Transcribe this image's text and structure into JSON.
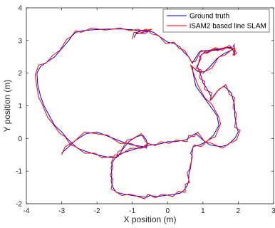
{
  "chart_data": {
    "type": "line",
    "xlabel": "X position (m)",
    "ylabel": "Y position (m)",
    "xlim": [
      -4,
      3
    ],
    "ylim": [
      -2,
      4
    ],
    "xticks": [
      -4,
      -3,
      -2,
      -1,
      0,
      1,
      2,
      3
    ],
    "yticks": [
      -2,
      -1,
      0,
      1,
      2,
      3,
      4
    ],
    "xtick_labels": [
      "-4",
      "-3",
      "-2",
      "-1",
      "0",
      "1",
      "2",
      "3"
    ],
    "ytick_labels": [
      "-2",
      "-1",
      "0",
      "1",
      "2",
      "3",
      "4"
    ],
    "grid": false,
    "legend_position": "top-right",
    "series": [
      {
        "name": "Ground truth",
        "color": "#0000ff",
        "x": [
          -3.0,
          -2.85,
          -2.6,
          -2.3,
          -2.0,
          -1.65,
          -1.3,
          -1.0,
          -0.7,
          -0.6,
          -0.58,
          -0.6,
          -0.7,
          -0.9,
          -1.1,
          -1.25,
          -1.35,
          -1.4,
          -1.55,
          -1.8,
          -2.0,
          -2.3,
          -2.55,
          -2.7,
          -2.85,
          -3.0,
          -3.2,
          -3.35,
          -3.5,
          -3.6,
          -3.68,
          -3.7,
          -3.6,
          -3.4,
          -3.2,
          -3.0,
          -2.8,
          -2.7,
          -2.6,
          -2.4,
          -2.1,
          -1.7,
          -1.3,
          -1.0,
          -0.8,
          -0.65,
          -0.5,
          -0.7,
          -0.9,
          -0.95,
          -0.9,
          -0.8,
          -0.55,
          -0.4,
          -0.2,
          0.0,
          0.2,
          0.35,
          0.45,
          0.6,
          0.7,
          0.75,
          0.9,
          1.1,
          1.3,
          1.5,
          1.7,
          1.85,
          1.8,
          1.6,
          1.4,
          1.2,
          1.0,
          0.8,
          0.7,
          0.72,
          0.8,
          1.0,
          1.2,
          1.4,
          1.45,
          1.3,
          1.1,
          0.9,
          0.72,
          0.7,
          0.68,
          0.65,
          0.6,
          0.6,
          0.55,
          0.45,
          0.35,
          0.1,
          -0.1,
          -0.3,
          -0.5,
          -0.6,
          -1.0,
          -1.25,
          -1.45,
          -1.55,
          -1.6,
          -1.58,
          -1.6,
          -1.55,
          -1.45,
          -1.3,
          -1.0,
          -0.7,
          -0.5,
          -0.3,
          -0.15,
          0.0,
          0.2,
          0.5,
          0.65,
          0.7,
          0.8,
          1.0,
          1.2,
          1.5,
          1.7,
          1.9,
          2.0,
          1.95,
          1.9,
          1.9,
          1.85,
          1.8,
          1.6,
          1.45,
          1.3,
          1.25,
          1.2,
          1.1,
          1.0,
          0.95,
          0.9,
          0.85,
          0.9,
          0.95,
          1.0,
          1.15,
          1.3,
          1.45,
          1.6,
          1.8,
          1.85,
          1.9,
          1.9,
          1.88
        ],
        "y": [
          -0.45,
          -0.3,
          -0.05,
          0.15,
          0.2,
          0.05,
          -0.1,
          -0.2,
          -0.25,
          -0.3,
          -0.2,
          -0.05,
          0.1,
          0.05,
          -0.1,
          -0.3,
          -0.45,
          -0.55,
          -0.6,
          -0.55,
          -0.5,
          -0.4,
          -0.3,
          -0.15,
          0.0,
          0.2,
          0.4,
          0.7,
          1.0,
          1.3,
          1.65,
          2.0,
          2.2,
          2.35,
          2.5,
          2.75,
          3.0,
          3.15,
          3.25,
          3.3,
          3.33,
          3.35,
          3.35,
          3.33,
          3.3,
          3.32,
          3.3,
          3.25,
          3.2,
          3.1,
          3.2,
          3.3,
          3.3,
          3.25,
          3.1,
          2.95,
          2.9,
          2.8,
          2.65,
          2.5,
          2.3,
          2.4,
          2.65,
          2.7,
          2.72,
          2.75,
          2.8,
          2.75,
          2.7,
          2.6,
          2.45,
          2.2,
          2.0,
          2.1,
          2.2,
          2.0,
          1.6,
          1.3,
          1.0,
          0.7,
          0.4,
          0.1,
          -0.1,
          -0.2,
          -0.25,
          -0.4,
          -0.6,
          -0.9,
          -1.1,
          -1.3,
          -1.45,
          -1.6,
          -1.68,
          -1.72,
          -1.75,
          -1.78,
          -1.75,
          -1.8,
          -1.75,
          -1.7,
          -1.65,
          -1.5,
          -1.3,
          -1.1,
          -0.9,
          -0.7,
          -0.55,
          -0.45,
          -0.35,
          -0.25,
          -0.2,
          -0.18,
          -0.15,
          -0.1,
          -0.1,
          -0.05,
          0.05,
          0.1,
          0.15,
          -0.05,
          -0.2,
          -0.25,
          -0.2,
          0.0,
          0.2,
          0.4,
          0.7,
          1.0,
          1.2,
          1.4,
          1.6,
          1.5,
          1.3,
          1.2,
          1.35,
          1.55,
          1.7,
          1.9,
          2.05,
          2.2,
          2.4,
          2.55,
          2.6,
          2.65,
          2.7,
          2.72,
          2.75,
          2.8,
          2.7,
          2.6,
          2.55,
          2.9
        ]
      },
      {
        "name": "iSAM2 based line SLAM",
        "color": "#ff0000",
        "x": [
          -3.0,
          -2.9,
          -2.65,
          -2.35,
          -2.05,
          -1.7,
          -1.35,
          -1.05,
          -0.75,
          -0.62,
          -0.55,
          -0.62,
          -0.75,
          -0.95,
          -1.15,
          -1.3,
          -1.4,
          -1.45,
          -1.6,
          -1.85,
          -2.05,
          -2.35,
          -2.6,
          -2.75,
          -2.9,
          -3.05,
          -3.25,
          -3.4,
          -3.55,
          -3.65,
          -3.72,
          -3.75,
          -3.65,
          -3.45,
          -3.25,
          -3.05,
          -2.85,
          -2.75,
          -2.6,
          -2.45,
          -2.15,
          -1.75,
          -1.35,
          -1.05,
          -0.85,
          -0.7,
          -0.45,
          -0.65,
          -0.95,
          -1.0,
          -0.95,
          -0.85,
          -0.6,
          -0.45,
          -0.25,
          -0.05,
          0.18,
          0.33,
          0.48,
          0.62,
          0.68,
          0.78,
          0.95,
          1.12,
          1.35,
          1.55,
          1.75,
          1.9,
          1.85,
          1.62,
          1.45,
          1.25,
          1.05,
          0.85,
          0.65,
          0.75,
          0.85,
          1.05,
          1.25,
          1.45,
          1.5,
          1.35,
          1.15,
          0.95,
          0.75,
          0.65,
          0.7,
          0.62,
          0.55,
          0.62,
          0.5,
          0.5,
          0.3,
          0.15,
          -0.15,
          -0.35,
          -0.55,
          -0.65,
          -1.05,
          -1.3,
          -1.5,
          -1.6,
          -1.55,
          -1.62,
          -1.55,
          -1.6,
          -1.5,
          -1.35,
          -1.05,
          -0.75,
          -0.55,
          -0.35,
          -0.2,
          0.05,
          0.25,
          0.55,
          0.6,
          0.75,
          0.85,
          1.05,
          1.25,
          1.55,
          1.75,
          1.95,
          2.05,
          1.9,
          1.95,
          1.85,
          1.9,
          1.75,
          1.65,
          1.4,
          1.35,
          1.2,
          1.25,
          1.05,
          1.05,
          0.9,
          0.95,
          0.8,
          0.95,
          0.9,
          1.05,
          1.1,
          1.35,
          1.4,
          1.65,
          1.75,
          1.9,
          1.85,
          1.95,
          1.85
        ],
        "y": [
          -0.5,
          -0.25,
          -0.1,
          0.2,
          0.15,
          0.1,
          -0.15,
          -0.15,
          -0.3,
          -0.25,
          -0.15,
          -0.1,
          0.15,
          0.0,
          -0.05,
          -0.35,
          -0.4,
          -0.6,
          -0.55,
          -0.6,
          -0.45,
          -0.45,
          -0.25,
          -0.2,
          0.05,
          0.15,
          0.45,
          0.65,
          1.05,
          1.25,
          1.7,
          1.95,
          2.25,
          2.3,
          2.55,
          2.7,
          3.05,
          3.1,
          3.3,
          3.25,
          3.38,
          3.32,
          3.38,
          3.3,
          3.35,
          3.28,
          3.35,
          3.2,
          3.25,
          3.05,
          3.25,
          3.25,
          3.35,
          3.2,
          3.15,
          2.9,
          2.95,
          2.75,
          2.7,
          2.45,
          2.35,
          2.35,
          2.7,
          2.65,
          2.78,
          2.7,
          2.85,
          2.7,
          2.75,
          2.55,
          2.5,
          2.15,
          2.05,
          2.05,
          2.25,
          1.95,
          1.65,
          1.25,
          1.05,
          0.65,
          0.45,
          0.05,
          -0.05,
          -0.25,
          -0.2,
          -0.45,
          -0.55,
          -0.95,
          -1.05,
          -1.35,
          -1.4,
          -1.65,
          -1.62,
          -1.78,
          -1.7,
          -1.82,
          -1.7,
          -1.85,
          -1.7,
          -1.75,
          -1.6,
          -1.55,
          -1.25,
          -1.15,
          -0.85,
          -0.75,
          -0.5,
          -0.5,
          -0.3,
          -0.3,
          -0.15,
          -0.22,
          -0.1,
          -0.15,
          -0.05,
          -0.1,
          0.1,
          0.05,
          0.2,
          -0.1,
          -0.15,
          -0.3,
          -0.15,
          -0.05,
          0.25,
          0.35,
          0.75,
          0.95,
          1.25,
          1.35,
          1.65,
          1.45,
          1.35,
          1.15,
          1.4,
          1.5,
          1.75,
          1.85,
          2.1,
          2.15,
          2.45,
          2.5,
          2.65,
          2.6,
          2.75,
          2.68,
          2.8,
          2.75,
          2.75,
          2.55,
          2.6,
          2.85
        ]
      }
    ]
  }
}
